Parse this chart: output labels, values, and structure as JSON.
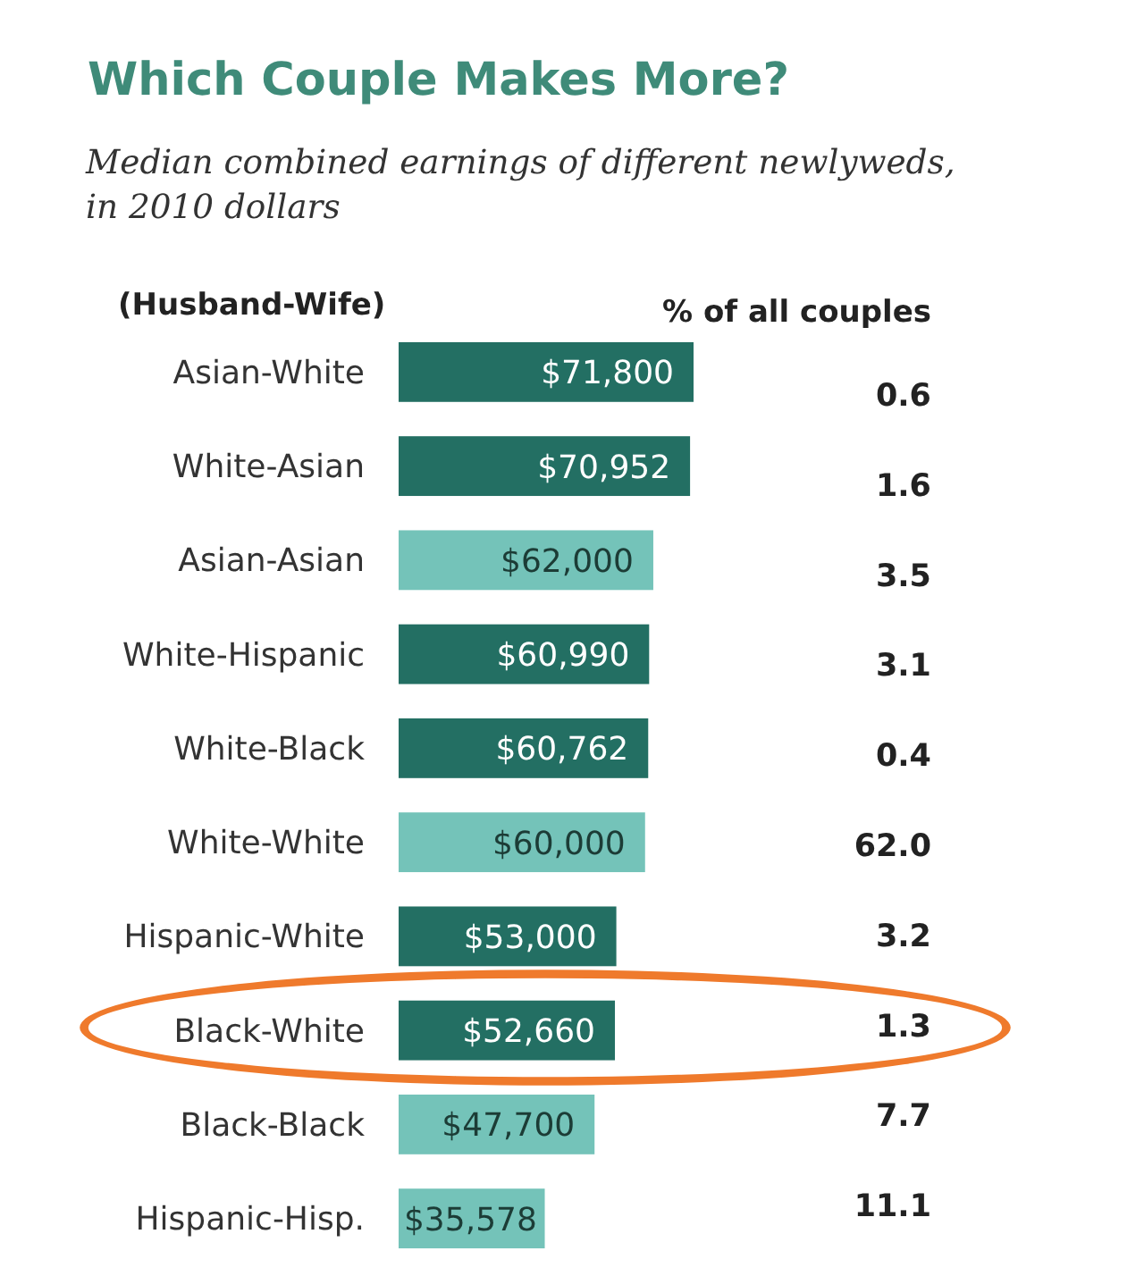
{
  "chart_data": {
    "type": "bar",
    "orientation": "horizontal",
    "title": "Which Couple Makes More?",
    "subtitle": "Median combined earnings of different newlyweds, in 2010 dollars",
    "ylabel": "(Husband-Wife)",
    "categories": [
      "Asian-White",
      "White-Asian",
      "Asian-Asian",
      "White-Hispanic",
      "White-Black",
      "White-White",
      "Hispanic-White",
      "Black-White",
      "Black-Black",
      "Hispanic-Hisp."
    ],
    "values": [
      71800,
      70952,
      62000,
      60990,
      60762,
      60000,
      53000,
      52660,
      47700,
      35578
    ],
    "colors": [
      "#236f63",
      "#236f63",
      "#74c3b9",
      "#236f63",
      "#236f63",
      "#74c3b9",
      "#236f63",
      "#236f63",
      "#74c3b9",
      "#74c3b9"
    ],
    "value_labels": [
      "$71,800",
      "$70,952",
      "$62,000",
      "$60,990",
      "$60,762",
      "$60,000",
      "$53,000",
      "$52,660",
      "$47,700",
      "$35,578"
    ],
    "annotations": [
      "% of all couples",
      "0.6",
      "1.6",
      "3.5",
      "3.1",
      "0.4",
      "62.0",
      "3.2",
      "1.3",
      "7.7",
      "11.1"
    ]
  }
}
